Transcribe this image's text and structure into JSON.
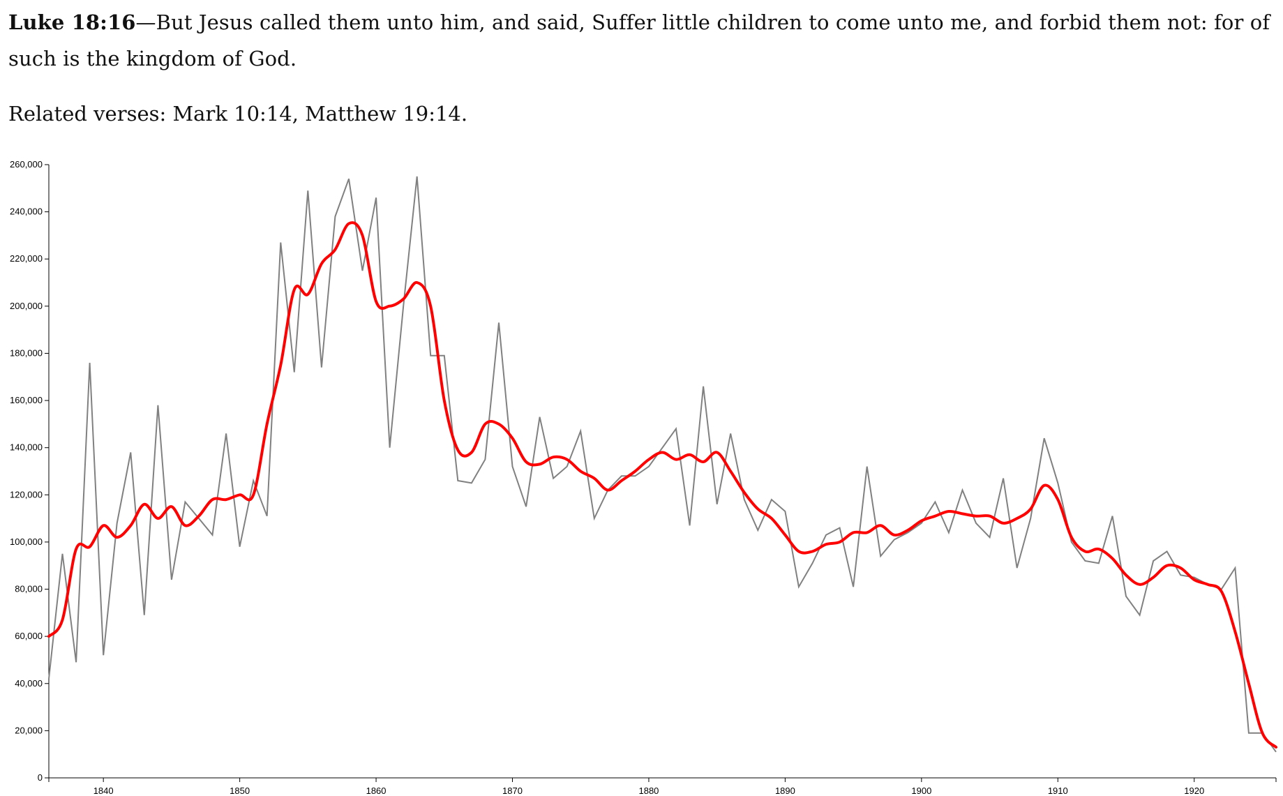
{
  "verse": {
    "reference": "Luke 18:16",
    "dash": "—",
    "text": "But Jesus called them unto him, and said, Suffer little children to come unto me, and forbid them not: for of such is the kingdom of God."
  },
  "related": {
    "prefix": "Related verses: ",
    "verses": "Mark 10:14, Matthew 19:14",
    "suffix": "."
  },
  "chart_data": {
    "type": "line",
    "title": "",
    "xlabel": "",
    "ylabel": "",
    "xlim": [
      1836,
      1926
    ],
    "ylim": [
      0,
      260000
    ],
    "grid": false,
    "y_ticks": [
      0,
      20000,
      40000,
      60000,
      80000,
      100000,
      120000,
      140000,
      160000,
      180000,
      200000,
      220000,
      240000,
      260000
    ],
    "x_ticks": [
      1840,
      1850,
      1860,
      1870,
      1880,
      1890,
      1900,
      1910,
      1920
    ],
    "colors": {
      "raw": "#808080",
      "smoothed": "#ff0000"
    },
    "series": [
      {
        "role": "raw",
        "x": [
          1836,
          1837,
          1838,
          1839,
          1840,
          1841,
          1842,
          1843,
          1844,
          1845,
          1846,
          1847,
          1848,
          1849,
          1850,
          1851,
          1852,
          1853,
          1854,
          1855,
          1856,
          1857,
          1858,
          1859,
          1860,
          1861,
          1862,
          1863,
          1864,
          1865,
          1866,
          1867,
          1868,
          1869,
          1870,
          1871,
          1872,
          1873,
          1874,
          1875,
          1876,
          1877,
          1878,
          1879,
          1880,
          1881,
          1882,
          1883,
          1884,
          1885,
          1886,
          1887,
          1888,
          1889,
          1890,
          1891,
          1892,
          1893,
          1894,
          1895,
          1896,
          1897,
          1898,
          1899,
          1900,
          1901,
          1902,
          1903,
          1904,
          1905,
          1906,
          1907,
          1908,
          1909,
          1910,
          1911,
          1912,
          1913,
          1914,
          1915,
          1916,
          1917,
          1918,
          1919,
          1920,
          1921,
          1922,
          1923,
          1924,
          1925,
          1926
        ],
        "y": [
          42000,
          95000,
          49000,
          176000,
          52000,
          108000,
          138000,
          69000,
          158000,
          84000,
          117000,
          110000,
          103000,
          146000,
          98000,
          126000,
          111000,
          227000,
          172000,
          249000,
          174000,
          238000,
          254000,
          215000,
          246000,
          140000,
          200000,
          255000,
          179000,
          179000,
          126000,
          125000,
          135000,
          193000,
          132000,
          115000,
          153000,
          127000,
          132000,
          147000,
          110000,
          122000,
          128000,
          128000,
          132000,
          140000,
          148000,
          107000,
          166000,
          116000,
          146000,
          118000,
          105000,
          118000,
          113000,
          81000,
          91000,
          103000,
          106000,
          81000,
          132000,
          94000,
          101000,
          104000,
          108000,
          117000,
          104000,
          122000,
          108000,
          102000,
          127000,
          89000,
          110000,
          144000,
          125000,
          100000,
          92000,
          91000,
          111000,
          77000,
          69000,
          92000,
          96000,
          86000,
          85000,
          82000,
          80000,
          89000,
          19000,
          19000,
          11000
        ]
      },
      {
        "role": "smoothed",
        "x": [
          1836,
          1837,
          1838,
          1839,
          1840,
          1841,
          1842,
          1843,
          1844,
          1845,
          1846,
          1847,
          1848,
          1849,
          1850,
          1851,
          1852,
          1853,
          1854,
          1855,
          1856,
          1857,
          1858,
          1859,
          1860,
          1861,
          1862,
          1863,
          1864,
          1865,
          1866,
          1867,
          1868,
          1869,
          1870,
          1871,
          1872,
          1873,
          1874,
          1875,
          1876,
          1877,
          1878,
          1879,
          1880,
          1881,
          1882,
          1883,
          1884,
          1885,
          1886,
          1887,
          1888,
          1889,
          1890,
          1891,
          1892,
          1893,
          1894,
          1895,
          1896,
          1897,
          1898,
          1899,
          1900,
          1901,
          1902,
          1903,
          1904,
          1905,
          1906,
          1907,
          1908,
          1909,
          1910,
          1911,
          1912,
          1913,
          1914,
          1915,
          1916,
          1917,
          1918,
          1919,
          1920,
          1921,
          1922,
          1923,
          1924,
          1925,
          1926
        ],
        "y": [
          60000,
          67000,
          97000,
          98000,
          107000,
          102000,
          107000,
          116000,
          110000,
          115000,
          107000,
          111000,
          118000,
          118000,
          120000,
          120000,
          150000,
          175000,
          207000,
          205000,
          218000,
          224000,
          235000,
          230000,
          202000,
          200000,
          203000,
          210000,
          200000,
          160000,
          139000,
          138000,
          150000,
          150000,
          144000,
          134000,
          133000,
          136000,
          135000,
          130000,
          127000,
          122000,
          126000,
          130000,
          135000,
          138000,
          135000,
          137000,
          134000,
          138000,
          130000,
          121000,
          114000,
          110000,
          103000,
          96000,
          96000,
          99000,
          100000,
          104000,
          104000,
          107000,
          103000,
          105000,
          109000,
          111000,
          113000,
          112000,
          111000,
          111000,
          108000,
          110000,
          114000,
          124000,
          118000,
          102000,
          96000,
          97000,
          93000,
          86000,
          82000,
          85000,
          90000,
          89000,
          84000,
          82000,
          79000,
          62000,
          40000,
          19000,
          13000
        ]
      }
    ]
  }
}
